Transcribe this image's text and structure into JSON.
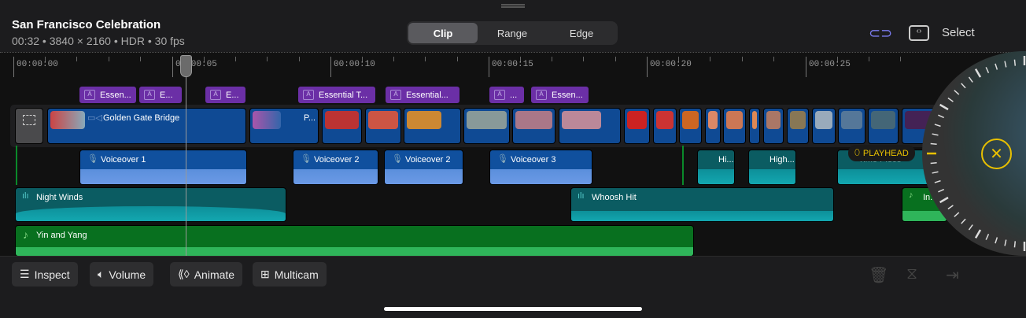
{
  "header": {
    "title": "San Francisco Celebration",
    "meta": "00:32 • 3840 × 2160 • HDR • 30 fps",
    "modes": [
      "Clip",
      "Range",
      "Edge"
    ],
    "active_mode": "Clip",
    "select_label": "Select"
  },
  "ruler": {
    "labels": [
      "00:00:00",
      "00:00:05",
      "00:00:10",
      "00:00:15",
      "00:00:20",
      "00:00:25"
    ]
  },
  "titles": [
    "Essen...",
    "E...",
    "E...",
    "Essential T...",
    "Essential...",
    "...",
    "Essen..."
  ],
  "video": {
    "main_clip": "Golden Gate Bridge",
    "second_clip": "P..."
  },
  "voiceovers": [
    "Voiceover 1",
    "Voiceover 2",
    "Voiceover 2",
    "Voiceover 3"
  ],
  "effects": [
    "Hi...",
    "High...",
    "Time Piece"
  ],
  "ambient": [
    "Night Winds",
    "Whoosh Hit",
    "In..."
  ],
  "music": [
    "Yin and Yang"
  ],
  "playhead_badge": "PLAYHEAD",
  "toolbar": {
    "inspect": "Inspect",
    "volume": "Volume",
    "animate": "Animate",
    "multicam": "Multicam"
  },
  "colors": {
    "title": "#6b2fa6",
    "video": "#0f4a94",
    "voiceover": "#10509e",
    "sfx": "#0b5c62",
    "music": "#08701f",
    "accent": "#e8c000"
  }
}
